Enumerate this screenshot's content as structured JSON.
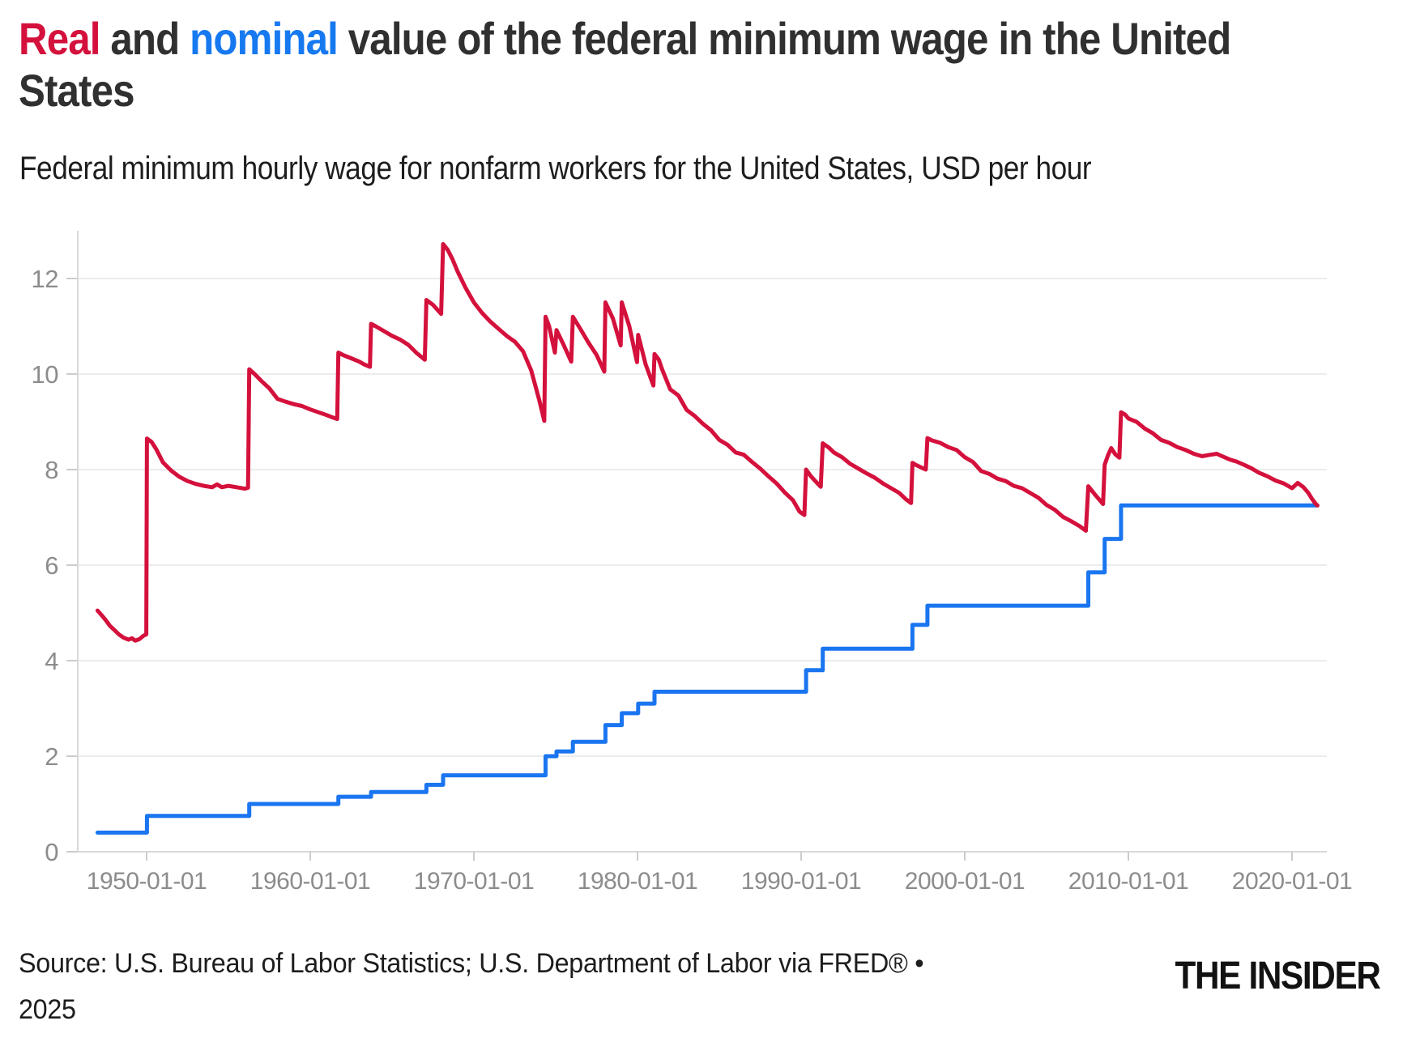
{
  "header": {
    "title_parts": [
      {
        "text": "Real",
        "role": "real-series-word",
        "color": "#d4113c"
      },
      {
        "text": " and ",
        "role": "plain",
        "color": "#303030"
      },
      {
        "text": "nominal",
        "role": "nominal-series-word",
        "color": "#1679f0"
      },
      {
        "text": " value of the federal minimum wage in the United States",
        "role": "plain",
        "color": "#303030"
      }
    ],
    "subtitle": "Federal minimum hourly wage for nonfarm workers for the United States, USD per hour"
  },
  "footer": {
    "source_line1": "Source: U.S. Bureau of Labor Statistics; U.S. Department of Labor via FRED® •",
    "source_line2": "2025",
    "brand": "THE INSIDER"
  },
  "chart_data": {
    "type": "line",
    "title": "Real and nominal value of the federal minimum wage in the United States",
    "xlabel": "",
    "ylabel": "USD per hour",
    "grid": true,
    "legend": {
      "position": "none",
      "note": "series identified by colored words in the title"
    },
    "x_axis": {
      "start_year": 1947.0,
      "end_year": 2021.55,
      "ticks": [
        {
          "label": "1950-01-01",
          "year": 1950
        },
        {
          "label": "1960-01-01",
          "year": 1960
        },
        {
          "label": "1970-01-01",
          "year": 1970
        },
        {
          "label": "1980-01-01",
          "year": 1980
        },
        {
          "label": "1990-01-01",
          "year": 1990
        },
        {
          "label": "2000-01-01",
          "year": 2000
        },
        {
          "label": "2010-01-01",
          "year": 2010
        },
        {
          "label": "2020-01-01",
          "year": 2020
        }
      ]
    },
    "y_axis": {
      "ticks": [
        0,
        2,
        4,
        6,
        8,
        10,
        12
      ],
      "range": [
        0,
        13
      ]
    },
    "series": [
      {
        "name": "Nominal federal minimum wage",
        "color": "#1a75f0",
        "style": "step",
        "points": [
          [
            1947.0,
            0.4
          ],
          [
            1950.02,
            0.75
          ],
          [
            1956.27,
            1.0
          ],
          [
            1961.72,
            1.15
          ],
          [
            1963.72,
            1.25
          ],
          [
            1967.1,
            1.4
          ],
          [
            1968.12,
            1.6
          ],
          [
            1974.38,
            2.0
          ],
          [
            1975.05,
            2.1
          ],
          [
            1976.05,
            2.3
          ],
          [
            1978.04,
            2.65
          ],
          [
            1979.04,
            2.9
          ],
          [
            1980.04,
            3.1
          ],
          [
            1981.04,
            3.35
          ],
          [
            1990.3,
            3.8
          ],
          [
            1991.32,
            4.25
          ],
          [
            1996.8,
            4.75
          ],
          [
            1997.72,
            5.15
          ],
          [
            2007.55,
            5.85
          ],
          [
            2008.55,
            6.55
          ],
          [
            2009.55,
            7.25
          ]
        ],
        "end_year": 2021.55,
        "end_value": 7.25
      },
      {
        "name": "Real (inflation-adjusted) federal minimum wage",
        "color": "#d4113c",
        "style": "line",
        "points": [
          [
            1947.0,
            5.05
          ],
          [
            1947.25,
            4.95
          ],
          [
            1947.5,
            4.85
          ],
          [
            1947.75,
            4.73
          ],
          [
            1948.0,
            4.65
          ],
          [
            1948.3,
            4.55
          ],
          [
            1948.6,
            4.48
          ],
          [
            1948.9,
            4.44
          ],
          [
            1949.1,
            4.47
          ],
          [
            1949.3,
            4.42
          ],
          [
            1949.55,
            4.45
          ],
          [
            1949.8,
            4.52
          ],
          [
            1949.98,
            4.55
          ],
          [
            1950.02,
            8.65
          ],
          [
            1950.3,
            8.58
          ],
          [
            1950.6,
            8.42
          ],
          [
            1951.0,
            8.15
          ],
          [
            1951.5,
            7.98
          ],
          [
            1952.0,
            7.85
          ],
          [
            1952.5,
            7.76
          ],
          [
            1953.0,
            7.7
          ],
          [
            1953.5,
            7.66
          ],
          [
            1954.0,
            7.63
          ],
          [
            1954.3,
            7.69
          ],
          [
            1954.6,
            7.63
          ],
          [
            1955.0,
            7.66
          ],
          [
            1955.5,
            7.63
          ],
          [
            1956.0,
            7.6
          ],
          [
            1956.2,
            7.62
          ],
          [
            1956.27,
            10.1
          ],
          [
            1956.6,
            10.0
          ],
          [
            1957.0,
            9.86
          ],
          [
            1957.5,
            9.7
          ],
          [
            1958.0,
            9.48
          ],
          [
            1958.5,
            9.42
          ],
          [
            1959.0,
            9.37
          ],
          [
            1959.5,
            9.33
          ],
          [
            1960.0,
            9.26
          ],
          [
            1960.5,
            9.2
          ],
          [
            1961.0,
            9.14
          ],
          [
            1961.3,
            9.1
          ],
          [
            1961.65,
            9.06
          ],
          [
            1961.72,
            10.45
          ],
          [
            1962.0,
            10.4
          ],
          [
            1962.5,
            10.33
          ],
          [
            1963.0,
            10.26
          ],
          [
            1963.3,
            10.2
          ],
          [
            1963.65,
            10.15
          ],
          [
            1963.72,
            11.05
          ],
          [
            1964.0,
            11.0
          ],
          [
            1964.5,
            10.9
          ],
          [
            1965.0,
            10.8
          ],
          [
            1965.5,
            10.72
          ],
          [
            1966.0,
            10.61
          ],
          [
            1966.5,
            10.44
          ],
          [
            1967.0,
            10.3
          ],
          [
            1967.1,
            11.55
          ],
          [
            1967.5,
            11.45
          ],
          [
            1968.0,
            11.26
          ],
          [
            1968.12,
            12.72
          ],
          [
            1968.4,
            12.6
          ],
          [
            1968.7,
            12.4
          ],
          [
            1969.0,
            12.15
          ],
          [
            1969.5,
            11.8
          ],
          [
            1970.0,
            11.5
          ],
          [
            1970.5,
            11.28
          ],
          [
            1971.0,
            11.1
          ],
          [
            1971.5,
            10.95
          ],
          [
            1972.0,
            10.8
          ],
          [
            1972.5,
            10.68
          ],
          [
            1973.0,
            10.48
          ],
          [
            1973.5,
            10.08
          ],
          [
            1974.0,
            9.45
          ],
          [
            1974.3,
            9.02
          ],
          [
            1974.38,
            11.2
          ],
          [
            1974.6,
            11.0
          ],
          [
            1974.95,
            10.45
          ],
          [
            1975.05,
            10.92
          ],
          [
            1975.5,
            10.6
          ],
          [
            1975.95,
            10.26
          ],
          [
            1976.05,
            11.2
          ],
          [
            1976.5,
            10.95
          ],
          [
            1977.0,
            10.66
          ],
          [
            1977.5,
            10.4
          ],
          [
            1977.97,
            10.05
          ],
          [
            1978.04,
            11.5
          ],
          [
            1978.5,
            11.16
          ],
          [
            1978.97,
            10.6
          ],
          [
            1979.04,
            11.5
          ],
          [
            1979.5,
            11.0
          ],
          [
            1979.97,
            10.25
          ],
          [
            1980.04,
            10.82
          ],
          [
            1980.5,
            10.2
          ],
          [
            1980.97,
            9.76
          ],
          [
            1981.04,
            10.42
          ],
          [
            1981.3,
            10.3
          ],
          [
            1981.5,
            10.1
          ],
          [
            1982.0,
            9.68
          ],
          [
            1982.5,
            9.55
          ],
          [
            1983.0,
            9.25
          ],
          [
            1983.5,
            9.12
          ],
          [
            1984.0,
            8.96
          ],
          [
            1984.5,
            8.82
          ],
          [
            1985.0,
            8.62
          ],
          [
            1985.5,
            8.52
          ],
          [
            1986.0,
            8.36
          ],
          [
            1986.5,
            8.31
          ],
          [
            1987.0,
            8.16
          ],
          [
            1987.5,
            8.02
          ],
          [
            1988.0,
            7.86
          ],
          [
            1988.5,
            7.71
          ],
          [
            1989.0,
            7.52
          ],
          [
            1989.5,
            7.36
          ],
          [
            1989.9,
            7.12
          ],
          [
            1990.2,
            7.05
          ],
          [
            1990.3,
            8.0
          ],
          [
            1990.6,
            7.86
          ],
          [
            1991.0,
            7.71
          ],
          [
            1991.2,
            7.64
          ],
          [
            1991.32,
            8.55
          ],
          [
            1991.7,
            8.46
          ],
          [
            1992.0,
            8.36
          ],
          [
            1992.5,
            8.26
          ],
          [
            1993.0,
            8.12
          ],
          [
            1993.5,
            8.02
          ],
          [
            1994.0,
            7.92
          ],
          [
            1994.5,
            7.83
          ],
          [
            1995.0,
            7.71
          ],
          [
            1995.5,
            7.61
          ],
          [
            1996.0,
            7.51
          ],
          [
            1996.4,
            7.38
          ],
          [
            1996.72,
            7.3
          ],
          [
            1996.8,
            8.14
          ],
          [
            1997.0,
            8.1
          ],
          [
            1997.3,
            8.05
          ],
          [
            1997.62,
            8.0
          ],
          [
            1997.72,
            8.66
          ],
          [
            1998.0,
            8.61
          ],
          [
            1998.5,
            8.56
          ],
          [
            1999.0,
            8.47
          ],
          [
            1999.5,
            8.41
          ],
          [
            2000.0,
            8.26
          ],
          [
            2000.5,
            8.16
          ],
          [
            2001.0,
            7.97
          ],
          [
            2001.5,
            7.91
          ],
          [
            2002.0,
            7.81
          ],
          [
            2002.5,
            7.76
          ],
          [
            2003.0,
            7.66
          ],
          [
            2003.5,
            7.61
          ],
          [
            2004.0,
            7.51
          ],
          [
            2004.5,
            7.41
          ],
          [
            2005.0,
            7.26
          ],
          [
            2005.5,
            7.16
          ],
          [
            2006.0,
            7.01
          ],
          [
            2006.5,
            6.92
          ],
          [
            2007.0,
            6.82
          ],
          [
            2007.4,
            6.72
          ],
          [
            2007.55,
            7.65
          ],
          [
            2008.0,
            7.46
          ],
          [
            2008.45,
            7.28
          ],
          [
            2008.55,
            8.1
          ],
          [
            2008.75,
            8.3
          ],
          [
            2008.95,
            8.45
          ],
          [
            2009.2,
            8.32
          ],
          [
            2009.45,
            8.25
          ],
          [
            2009.55,
            9.2
          ],
          [
            2009.8,
            9.15
          ],
          [
            2010.0,
            9.07
          ],
          [
            2010.5,
            9.0
          ],
          [
            2011.0,
            8.86
          ],
          [
            2011.5,
            8.76
          ],
          [
            2012.0,
            8.62
          ],
          [
            2012.5,
            8.56
          ],
          [
            2013.0,
            8.47
          ],
          [
            2013.5,
            8.41
          ],
          [
            2014.0,
            8.33
          ],
          [
            2014.5,
            8.28
          ],
          [
            2015.0,
            8.31
          ],
          [
            2015.4,
            8.33
          ],
          [
            2015.8,
            8.27
          ],
          [
            2016.2,
            8.21
          ],
          [
            2016.6,
            8.17
          ],
          [
            2017.0,
            8.11
          ],
          [
            2017.5,
            8.03
          ],
          [
            2018.0,
            7.93
          ],
          [
            2018.5,
            7.86
          ],
          [
            2019.0,
            7.77
          ],
          [
            2019.5,
            7.71
          ],
          [
            2020.0,
            7.61
          ],
          [
            2020.35,
            7.72
          ],
          [
            2020.7,
            7.63
          ],
          [
            2021.0,
            7.51
          ],
          [
            2021.2,
            7.4
          ],
          [
            2021.45,
            7.28
          ],
          [
            2021.55,
            7.25
          ]
        ]
      }
    ],
    "style_colors": {
      "gridline": "#ececec",
      "axis_line": "#d9d9d9",
      "tick_mark": "#cccccc",
      "tick_label": "#8c8c8c"
    }
  }
}
